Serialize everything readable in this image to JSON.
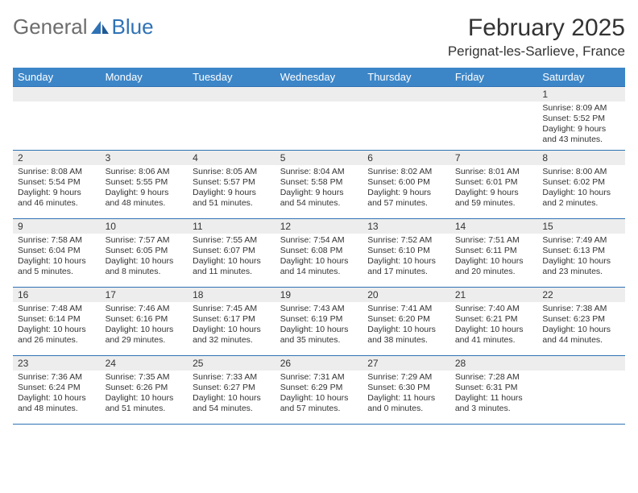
{
  "brand": {
    "part1": "General",
    "part2": "Blue"
  },
  "title": "February 2025",
  "location": "Perignat-les-Sarlieve, France",
  "colors": {
    "header_bg": "#3c86c8",
    "border": "#2f72b5",
    "daynum_bg": "#ededed",
    "text": "#333333",
    "logo_grey": "#6d6d6d",
    "logo_blue": "#2f72b5"
  },
  "typography": {
    "title_fontsize": 30,
    "location_fontsize": 17,
    "header_fontsize": 13,
    "body_fontsize": 10.5
  },
  "dayNames": [
    "Sunday",
    "Monday",
    "Tuesday",
    "Wednesday",
    "Thursday",
    "Friday",
    "Saturday"
  ],
  "weeks": [
    [
      null,
      null,
      null,
      null,
      null,
      null,
      {
        "n": "1",
        "sunrise": "Sunrise: 8:09 AM",
        "sunset": "Sunset: 5:52 PM",
        "daylight": "Daylight: 9 hours and 43 minutes."
      }
    ],
    [
      {
        "n": "2",
        "sunrise": "Sunrise: 8:08 AM",
        "sunset": "Sunset: 5:54 PM",
        "daylight": "Daylight: 9 hours and 46 minutes."
      },
      {
        "n": "3",
        "sunrise": "Sunrise: 8:06 AM",
        "sunset": "Sunset: 5:55 PM",
        "daylight": "Daylight: 9 hours and 48 minutes."
      },
      {
        "n": "4",
        "sunrise": "Sunrise: 8:05 AM",
        "sunset": "Sunset: 5:57 PM",
        "daylight": "Daylight: 9 hours and 51 minutes."
      },
      {
        "n": "5",
        "sunrise": "Sunrise: 8:04 AM",
        "sunset": "Sunset: 5:58 PM",
        "daylight": "Daylight: 9 hours and 54 minutes."
      },
      {
        "n": "6",
        "sunrise": "Sunrise: 8:02 AM",
        "sunset": "Sunset: 6:00 PM",
        "daylight": "Daylight: 9 hours and 57 minutes."
      },
      {
        "n": "7",
        "sunrise": "Sunrise: 8:01 AM",
        "sunset": "Sunset: 6:01 PM",
        "daylight": "Daylight: 9 hours and 59 minutes."
      },
      {
        "n": "8",
        "sunrise": "Sunrise: 8:00 AM",
        "sunset": "Sunset: 6:02 PM",
        "daylight": "Daylight: 10 hours and 2 minutes."
      }
    ],
    [
      {
        "n": "9",
        "sunrise": "Sunrise: 7:58 AM",
        "sunset": "Sunset: 6:04 PM",
        "daylight": "Daylight: 10 hours and 5 minutes."
      },
      {
        "n": "10",
        "sunrise": "Sunrise: 7:57 AM",
        "sunset": "Sunset: 6:05 PM",
        "daylight": "Daylight: 10 hours and 8 minutes."
      },
      {
        "n": "11",
        "sunrise": "Sunrise: 7:55 AM",
        "sunset": "Sunset: 6:07 PM",
        "daylight": "Daylight: 10 hours and 11 minutes."
      },
      {
        "n": "12",
        "sunrise": "Sunrise: 7:54 AM",
        "sunset": "Sunset: 6:08 PM",
        "daylight": "Daylight: 10 hours and 14 minutes."
      },
      {
        "n": "13",
        "sunrise": "Sunrise: 7:52 AM",
        "sunset": "Sunset: 6:10 PM",
        "daylight": "Daylight: 10 hours and 17 minutes."
      },
      {
        "n": "14",
        "sunrise": "Sunrise: 7:51 AM",
        "sunset": "Sunset: 6:11 PM",
        "daylight": "Daylight: 10 hours and 20 minutes."
      },
      {
        "n": "15",
        "sunrise": "Sunrise: 7:49 AM",
        "sunset": "Sunset: 6:13 PM",
        "daylight": "Daylight: 10 hours and 23 minutes."
      }
    ],
    [
      {
        "n": "16",
        "sunrise": "Sunrise: 7:48 AM",
        "sunset": "Sunset: 6:14 PM",
        "daylight": "Daylight: 10 hours and 26 minutes."
      },
      {
        "n": "17",
        "sunrise": "Sunrise: 7:46 AM",
        "sunset": "Sunset: 6:16 PM",
        "daylight": "Daylight: 10 hours and 29 minutes."
      },
      {
        "n": "18",
        "sunrise": "Sunrise: 7:45 AM",
        "sunset": "Sunset: 6:17 PM",
        "daylight": "Daylight: 10 hours and 32 minutes."
      },
      {
        "n": "19",
        "sunrise": "Sunrise: 7:43 AM",
        "sunset": "Sunset: 6:19 PM",
        "daylight": "Daylight: 10 hours and 35 minutes."
      },
      {
        "n": "20",
        "sunrise": "Sunrise: 7:41 AM",
        "sunset": "Sunset: 6:20 PM",
        "daylight": "Daylight: 10 hours and 38 minutes."
      },
      {
        "n": "21",
        "sunrise": "Sunrise: 7:40 AM",
        "sunset": "Sunset: 6:21 PM",
        "daylight": "Daylight: 10 hours and 41 minutes."
      },
      {
        "n": "22",
        "sunrise": "Sunrise: 7:38 AM",
        "sunset": "Sunset: 6:23 PM",
        "daylight": "Daylight: 10 hours and 44 minutes."
      }
    ],
    [
      {
        "n": "23",
        "sunrise": "Sunrise: 7:36 AM",
        "sunset": "Sunset: 6:24 PM",
        "daylight": "Daylight: 10 hours and 48 minutes."
      },
      {
        "n": "24",
        "sunrise": "Sunrise: 7:35 AM",
        "sunset": "Sunset: 6:26 PM",
        "daylight": "Daylight: 10 hours and 51 minutes."
      },
      {
        "n": "25",
        "sunrise": "Sunrise: 7:33 AM",
        "sunset": "Sunset: 6:27 PM",
        "daylight": "Daylight: 10 hours and 54 minutes."
      },
      {
        "n": "26",
        "sunrise": "Sunrise: 7:31 AM",
        "sunset": "Sunset: 6:29 PM",
        "daylight": "Daylight: 10 hours and 57 minutes."
      },
      {
        "n": "27",
        "sunrise": "Sunrise: 7:29 AM",
        "sunset": "Sunset: 6:30 PM",
        "daylight": "Daylight: 11 hours and 0 minutes."
      },
      {
        "n": "28",
        "sunrise": "Sunrise: 7:28 AM",
        "sunset": "Sunset: 6:31 PM",
        "daylight": "Daylight: 11 hours and 3 minutes."
      },
      null
    ]
  ]
}
